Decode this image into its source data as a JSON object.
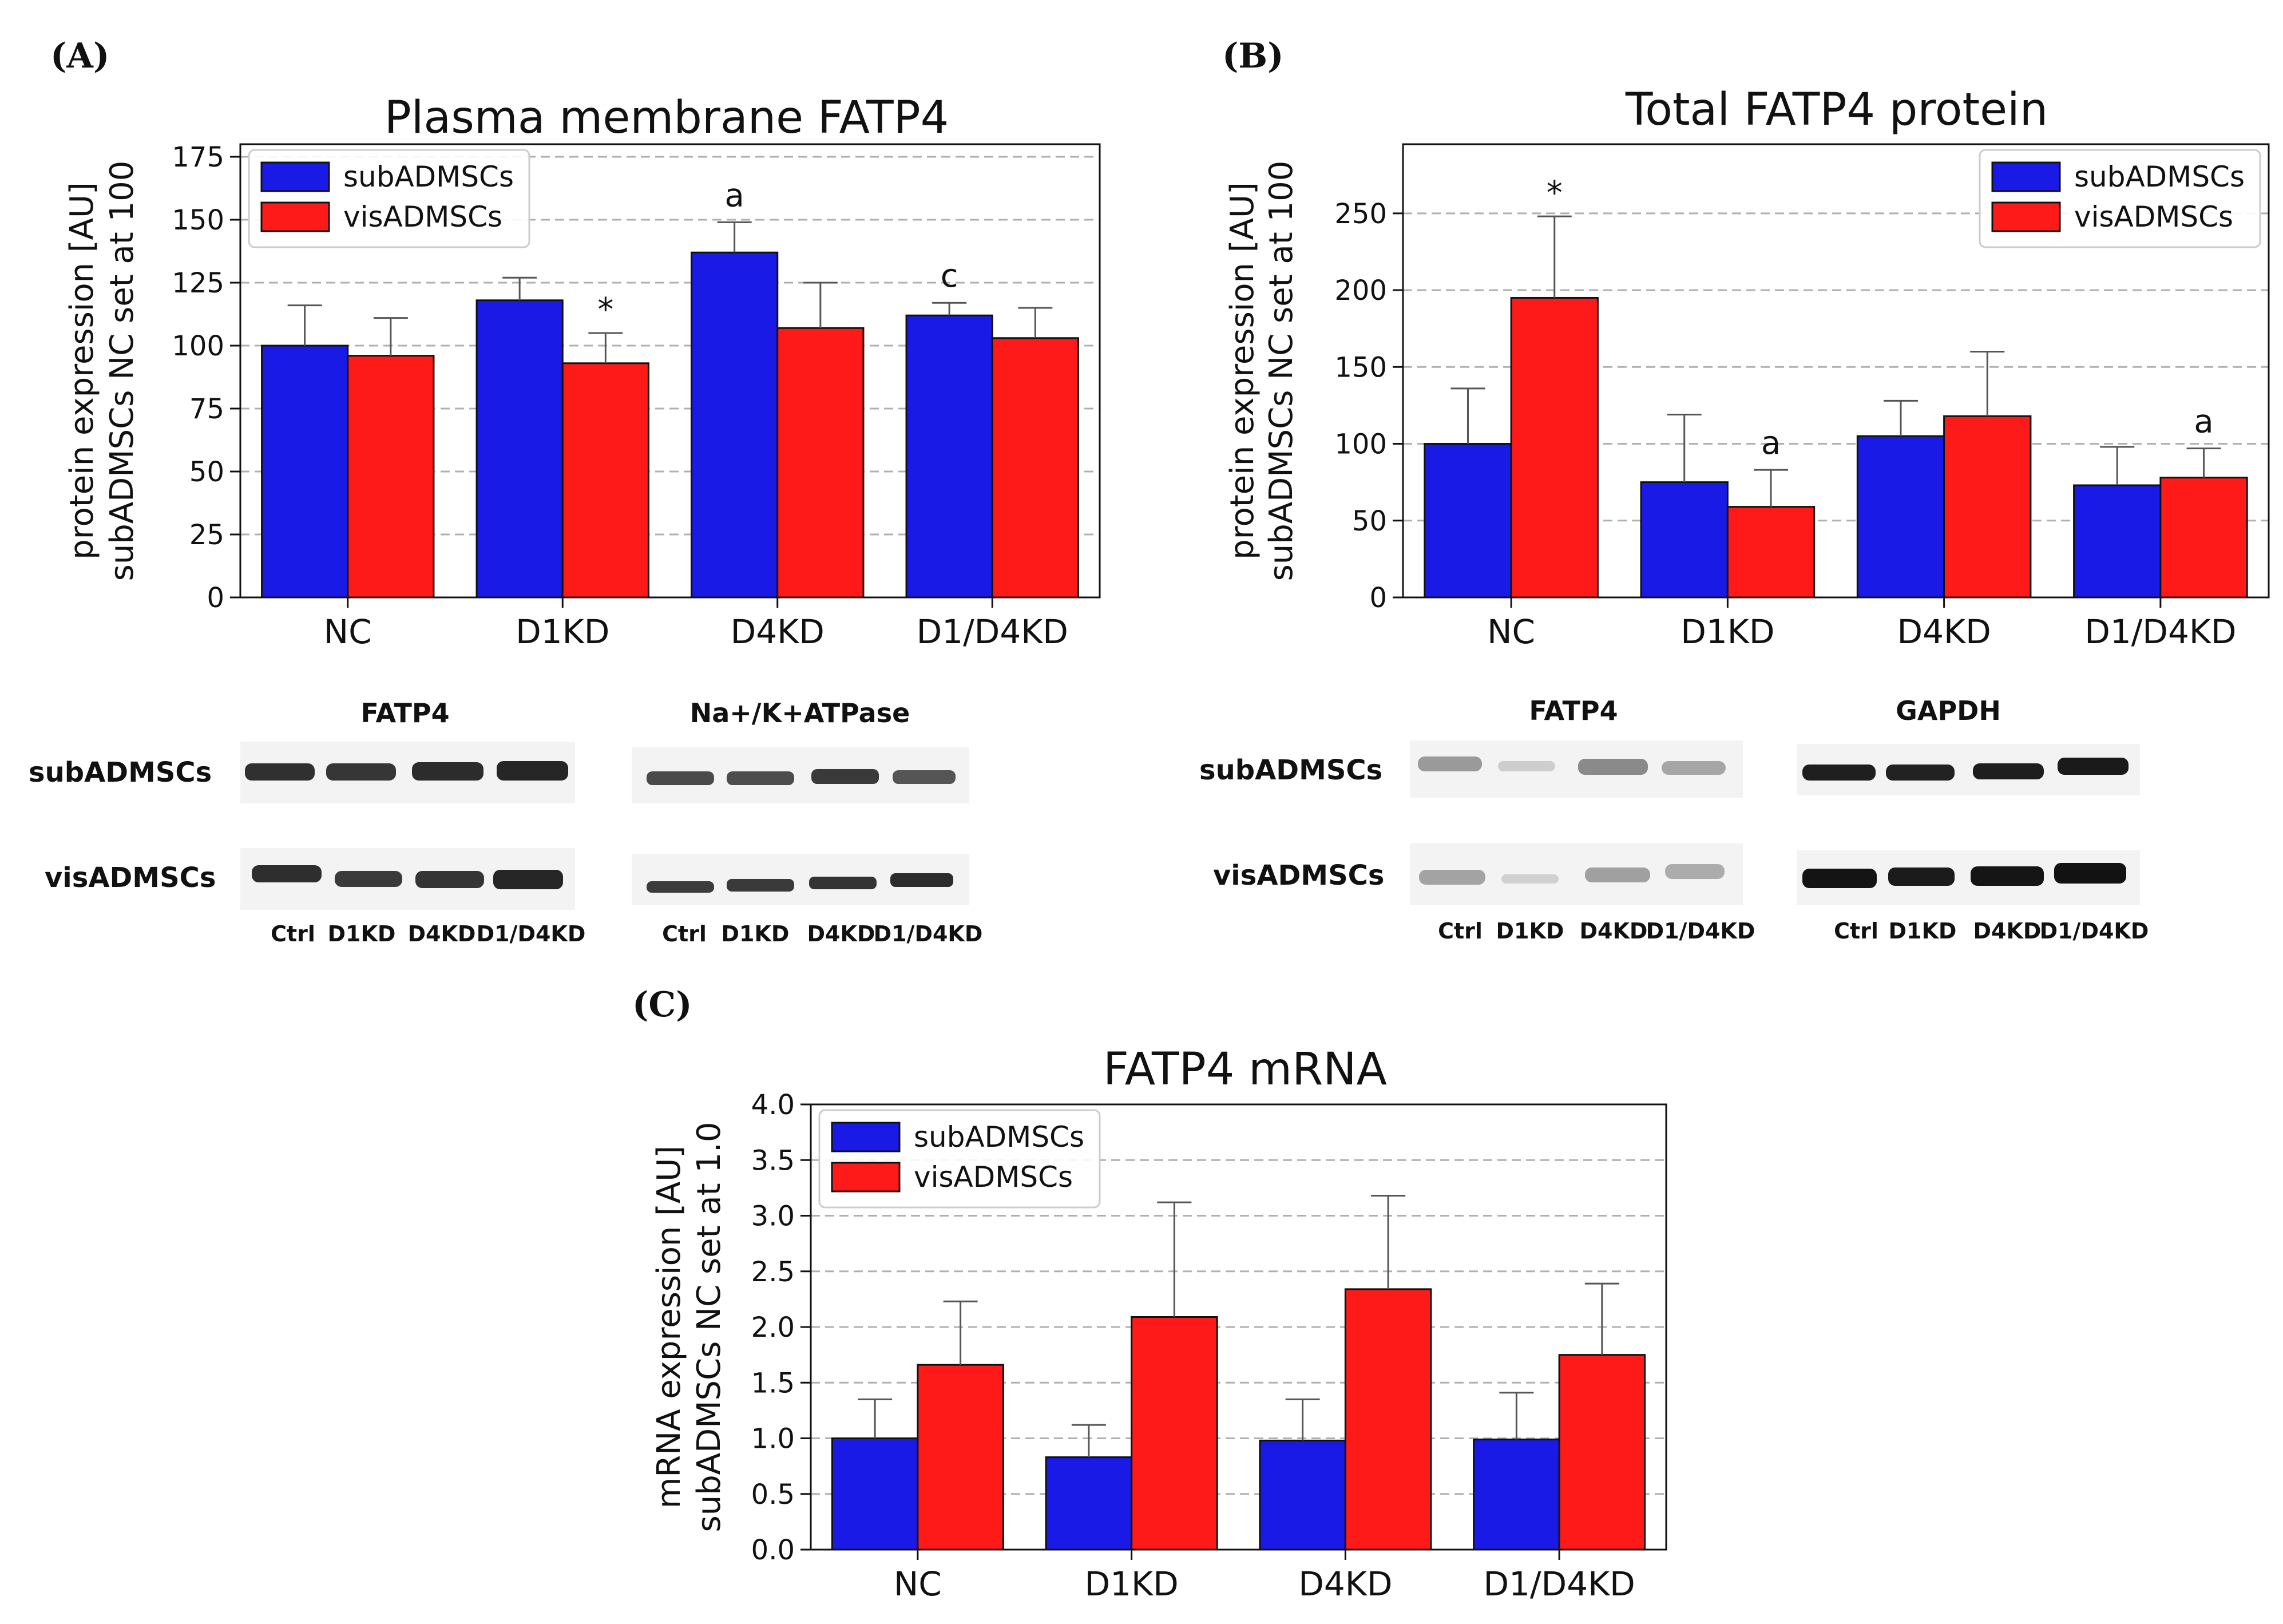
{
  "panels": {
    "A": {
      "letter": "(A)",
      "blot": {
        "headers": [
          "FATP4",
          "Na+/K+ATPase"
        ],
        "rows": [
          "subADMSCs",
          "visADMSCs"
        ],
        "lanes": [
          "Ctrl",
          "D1KD",
          "D4KD",
          "D1/D4KD"
        ]
      }
    },
    "B": {
      "letter": "(B)",
      "blot": {
        "headers": [
          "FATP4",
          "GAPDH"
        ],
        "rows": [
          "subADMSCs",
          "visADMSCs"
        ],
        "lanes": [
          "Ctrl",
          "D1KD",
          "D4KD",
          "D1/D4KD"
        ]
      }
    },
    "C": {
      "letter": "(C)"
    }
  },
  "colors": {
    "sub": "#1a1ae6",
    "vis": "#ff1a1a",
    "grid": "#b0b0b0",
    "error": "#555555"
  },
  "chart_data": [
    {
      "id": "A",
      "type": "bar",
      "title": "Plasma membrane FATP4",
      "ylabel_lines": [
        "protein expression [AU]",
        "subADMSCs NC set at 100"
      ],
      "xlabel": "",
      "categories": [
        "NC",
        "D1KD",
        "D4KD",
        "D1/D4KD"
      ],
      "ylim": [
        0,
        180
      ],
      "yticks": [
        0,
        25,
        50,
        75,
        100,
        125,
        150,
        175
      ],
      "grid": true,
      "legend": "top-left",
      "series": [
        {
          "name": "subADMSCs",
          "values": [
            100,
            118,
            137,
            112
          ],
          "errors": [
            16,
            9,
            12,
            5
          ],
          "annotations": [
            "",
            "",
            "a",
            "c"
          ]
        },
        {
          "name": "visADMSCs",
          "values": [
            96,
            93,
            107,
            103
          ],
          "errors": [
            15,
            12,
            18,
            12
          ],
          "annotations": [
            "",
            "*",
            "",
            ""
          ]
        }
      ]
    },
    {
      "id": "B",
      "type": "bar",
      "title": "Total FATP4 protein",
      "ylabel_lines": [
        "protein expression [AU]",
        "subADMSCs NC set at 100"
      ],
      "xlabel": "",
      "categories": [
        "NC",
        "D1KD",
        "D4KD",
        "D1/D4KD"
      ],
      "ylim": [
        0,
        295
      ],
      "yticks": [
        0,
        50,
        100,
        150,
        200,
        250
      ],
      "grid": true,
      "legend": "top-right",
      "series": [
        {
          "name": "subADMSCs",
          "values": [
            100,
            75,
            105,
            73
          ],
          "errors": [
            36,
            44,
            23,
            25
          ],
          "annotations": [
            "",
            "",
            "",
            ""
          ]
        },
        {
          "name": "visADMSCs",
          "values": [
            195,
            59,
            118,
            78
          ],
          "errors": [
            53,
            24,
            42,
            19
          ],
          "annotations": [
            "*",
            "a",
            "",
            "a"
          ]
        }
      ]
    },
    {
      "id": "C",
      "type": "bar",
      "title": "FATP4 mRNA",
      "ylabel_lines": [
        "mRNA expression [AU]",
        "subADMSCs NC set at 1.0"
      ],
      "xlabel": "",
      "categories": [
        "NC",
        "D1KD",
        "D4KD",
        "D1/D4KD"
      ],
      "ylim": [
        0,
        4.0
      ],
      "yticks": [
        "0.0",
        "0.5",
        "1.0",
        "1.5",
        "2.0",
        "2.5",
        "3.0",
        "3.5",
        "4.0"
      ],
      "grid": true,
      "legend": "top-left",
      "series": [
        {
          "name": "subADMSCs",
          "values": [
            1.0,
            0.83,
            0.98,
            0.99
          ],
          "errors": [
            0.35,
            0.29,
            0.37,
            0.42
          ],
          "annotations": [
            "",
            "",
            "",
            ""
          ]
        },
        {
          "name": "visADMSCs",
          "values": [
            1.66,
            2.09,
            2.34,
            1.75
          ],
          "errors": [
            0.57,
            1.03,
            0.84,
            0.64
          ],
          "annotations": [
            "",
            "",
            "",
            ""
          ]
        }
      ]
    }
  ]
}
